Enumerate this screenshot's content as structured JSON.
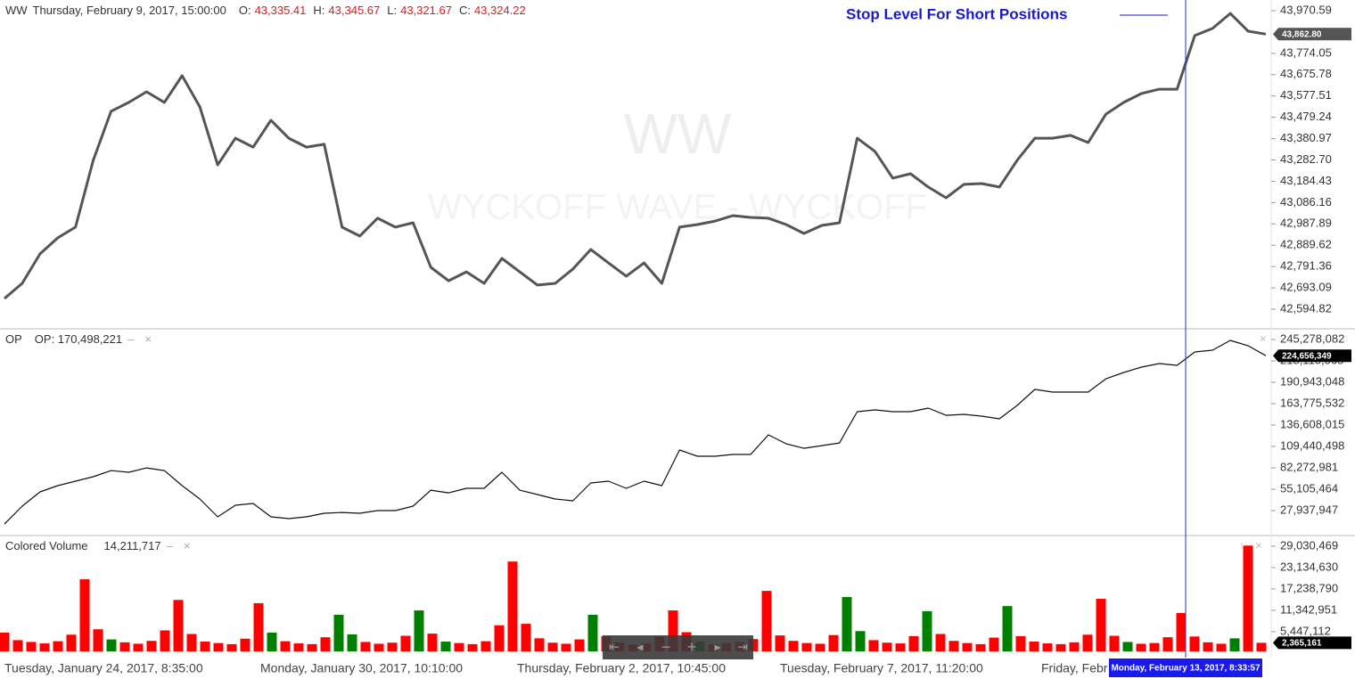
{
  "chart_data": [
    {
      "type": "line",
      "title": "WW",
      "subtitle": "Thursday, February 9, 2017, 15:00:00",
      "ohlc": [
        {
          "label": "O:",
          "value": "43,335.41"
        },
        {
          "label": "H:",
          "value": "43,345.67"
        },
        {
          "label": "L:",
          "value": "43,321.67"
        },
        {
          "label": "C:",
          "value": "43,324.22"
        }
      ],
      "annotation": "Stop Level For Short Positions",
      "watermark": [
        "WW",
        "WYCKOFF WAVE - WYCKOFF"
      ],
      "color": "#555555",
      "values": [
        42644,
        42714,
        42850,
        42924,
        42973,
        43281,
        43507,
        43548,
        43597,
        43548,
        43671,
        43527,
        43260,
        43383,
        43342,
        43466,
        43383,
        43342,
        43355,
        42973,
        42932,
        43014,
        42973,
        42993,
        42788,
        42726,
        42767,
        42714,
        42829,
        42767,
        42706,
        42714,
        42780,
        42870,
        42808,
        42747,
        42808,
        42714,
        42973,
        42985,
        43001,
        43026,
        43018,
        43014,
        42985,
        42944,
        42981,
        42993,
        43383,
        43322,
        43199,
        43219,
        43158,
        43108,
        43170,
        43174,
        43158,
        43281,
        43383,
        43383,
        43396,
        43363,
        43494,
        43548,
        43589,
        43609,
        43609,
        43856,
        43889,
        43958,
        43876,
        43862.8
      ],
      "last_label": "43,862.80",
      "ylim": [
        42508.6,
        44019.9
      ],
      "yticks": [
        {
          "value": 42594.82,
          "label": "42,594.82"
        },
        {
          "value": 42693.09,
          "label": "42,693.09"
        },
        {
          "value": 42791.36,
          "label": "42,791.36"
        },
        {
          "value": 42889.62,
          "label": "42,889.62"
        },
        {
          "value": 42987.89,
          "label": "42,987.89"
        },
        {
          "value": 43086.16,
          "label": "43,086.16"
        },
        {
          "value": 43184.43,
          "label": "43,184.43"
        },
        {
          "value": 43282.7,
          "label": "43,282.70"
        },
        {
          "value": 43380.97,
          "label": "43,380.97"
        },
        {
          "value": 43479.24,
          "label": "43,479.24"
        },
        {
          "value": 43577.51,
          "label": "43,577.51"
        },
        {
          "value": 43675.78,
          "label": "43,675.78"
        },
        {
          "value": 43774.05,
          "label": "43,774.05"
        },
        {
          "value": 43970.59,
          "label": "43,970.59"
        }
      ]
    },
    {
      "type": "line",
      "title": "OP",
      "subtitle": "OP: 170,498,221",
      "color": "#111111",
      "values": [
        10900000,
        33600000,
        51700000,
        59600000,
        65300000,
        70900000,
        78800000,
        76600000,
        82200000,
        78800000,
        59600000,
        42600000,
        20000000,
        34700000,
        37000000,
        20000000,
        17700000,
        20000000,
        24500000,
        25600000,
        24500000,
        27900000,
        27900000,
        33600000,
        53900000,
        50500000,
        56200000,
        56200000,
        76600000,
        53900000,
        48300000,
        42600000,
        40400000,
        63000000,
        65300000,
        56200000,
        65300000,
        59600000,
        104900000,
        97000000,
        97000000,
        99200000,
        99200000,
        124100000,
        112800000,
        107100000,
        110500000,
        113900000,
        153600000,
        155800000,
        153600000,
        153600000,
        158100000,
        149000000,
        150200000,
        147900000,
        144500000,
        161500000,
        181900000,
        178500000,
        178500000,
        178500000,
        195400000,
        203400000,
        210200000,
        214700000,
        212400000,
        229400000,
        231700000,
        244100000,
        237300000,
        224656349
      ],
      "last_label": "224,656,349",
      "ylim": [
        -2625000,
        257730000
      ],
      "yticks": [
        {
          "value": 27937947,
          "label": "27,937,947"
        },
        {
          "value": 55105464,
          "label": "55,105,464"
        },
        {
          "value": 82272981,
          "label": "82,272,981"
        },
        {
          "value": 109440498,
          "label": "109,440,498"
        },
        {
          "value": 136608015,
          "label": "136,608,015"
        },
        {
          "value": 163775532,
          "label": "163,775,532"
        },
        {
          "value": 190943048,
          "label": "190,943,048"
        },
        {
          "value": 218110565,
          "label": "218,110,565"
        },
        {
          "value": 245278082,
          "label": "245,278,082"
        }
      ]
    },
    {
      "type": "bar",
      "title": "Colored Volume",
      "subtitle": "14,211,717",
      "values": [
        5200000,
        3100000,
        2600000,
        2200000,
        2800000,
        4600000,
        19900000,
        6100000,
        3300000,
        2500000,
        2100000,
        2900000,
        5800000,
        14200000,
        4800000,
        2700000,
        2300000,
        2000000,
        3500000,
        13300000,
        5200000,
        2800000,
        2200000,
        2000000,
        3900000,
        10100000,
        4700000,
        2600000,
        2100000,
        2400000,
        4300000,
        11300000,
        4900000,
        2700000,
        2300000,
        2000000,
        2800000,
        7200000,
        24800000,
        7600000,
        3600000,
        2400000,
        2100000,
        3300000,
        10100000,
        4200000,
        2500000,
        1900000,
        2200000,
        4100000,
        11300000,
        5300000,
        2800000,
        2000000,
        2300000,
        2600000,
        3400000,
        16700000,
        4400000,
        2900000,
        2300000,
        2100000,
        4500000,
        15000000,
        5600000,
        3100000,
        2400000,
        2200000,
        4200000,
        11100000,
        4800000,
        2900000,
        2300000,
        2000000,
        3800000,
        12500000,
        4200000,
        2700000,
        2200000,
        2000000,
        2500000,
        4600000,
        14500000,
        4300000,
        2600000,
        2100000,
        2300000,
        3900000,
        10600000,
        4100000,
        2500000,
        2100000,
        3600000,
        29200000,
        2365161
      ],
      "colors": [
        "#ff0000",
        "#ff0000",
        "#ff0000",
        "#ff0000",
        "#ff0000",
        "#ff0000",
        "#ff0000",
        "#ff0000",
        "#008000",
        "#ff0000",
        "#ff0000",
        "#ff0000",
        "#ff0000",
        "#ff0000",
        "#ff0000",
        "#ff0000",
        "#ff0000",
        "#ff0000",
        "#ff0000",
        "#ff0000",
        "#008000",
        "#ff0000",
        "#ff0000",
        "#ff0000",
        "#ff0000",
        "#008000",
        "#008000",
        "#ff0000",
        "#ff0000",
        "#ff0000",
        "#ff0000",
        "#008000",
        "#ff0000",
        "#008000",
        "#ff0000",
        "#ff0000",
        "#ff0000",
        "#ff0000",
        "#ff0000",
        "#ff0000",
        "#ff0000",
        "#ff0000",
        "#ff0000",
        "#ff0000",
        "#008000",
        "#ff0000",
        "#ff0000",
        "#ff0000",
        "#ff0000",
        "#ff0000",
        "#ff0000",
        "#ff0000",
        "#008000",
        "#ff0000",
        "#ff0000",
        "#ff0000",
        "#ff0000",
        "#ff0000",
        "#ff0000",
        "#ff0000",
        "#ff0000",
        "#ff0000",
        "#ff0000",
        "#008000",
        "#008000",
        "#ff0000",
        "#ff0000",
        "#ff0000",
        "#ff0000",
        "#008000",
        "#ff0000",
        "#ff0000",
        "#ff0000",
        "#ff0000",
        "#ff0000",
        "#008000",
        "#ff0000",
        "#ff0000",
        "#ff0000",
        "#ff0000",
        "#ff0000",
        "#ff0000",
        "#ff0000",
        "#ff0000",
        "#008000",
        "#ff0000",
        "#ff0000",
        "#ff0000",
        "#ff0000",
        "#ff0000",
        "#ff0000",
        "#ff0000",
        "#008000",
        "#ff0000",
        "#ff0000"
      ],
      "last_label": "2,365,161",
      "ylim": [
        0,
        32224000
      ],
      "yticks": [
        {
          "value": 5447112,
          "label": "5,447,112"
        },
        {
          "value": 11342951,
          "label": "11,342,951"
        },
        {
          "value": 17238790,
          "label": "17,238,790"
        },
        {
          "value": 23134630,
          "label": "23,134,630"
        },
        {
          "value": 29030469,
          "label": "29,030,469"
        }
      ]
    }
  ],
  "x_labels": [
    "Tuesday, January 24, 2017, 8:35:00",
    "Monday, January 30, 2017, 10:10:00",
    "Thursday, February 2, 2017, 10:45:00",
    "Tuesday, February 7, 2017, 11:20:00",
    "Friday, Febr"
  ],
  "cursor_label": "Monday, February 13, 2017, 8:33:57"
}
